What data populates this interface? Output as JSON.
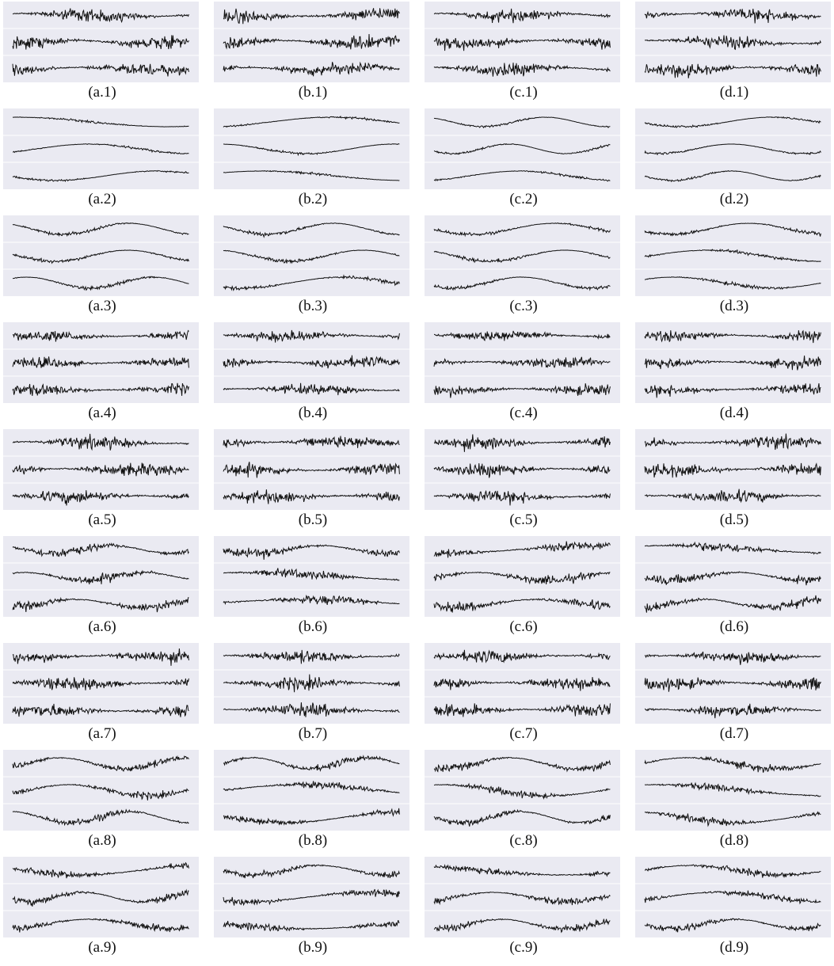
{
  "panels": [
    {
      "caption": "(a.1)"
    },
    {
      "caption": "(b.1)"
    },
    {
      "caption": "(c.1)"
    },
    {
      "caption": "(d.1)"
    },
    {
      "caption": "(a.2)"
    },
    {
      "caption": "(b.2)"
    },
    {
      "caption": "(c.2)"
    },
    {
      "caption": "(d.2)"
    },
    {
      "caption": "(a.3)"
    },
    {
      "caption": "(b.3)"
    },
    {
      "caption": "(c.3)"
    },
    {
      "caption": "(d.3)"
    },
    {
      "caption": "(a.4)"
    },
    {
      "caption": "(b.4)"
    },
    {
      "caption": "(c.4)"
    },
    {
      "caption": "(d.4)"
    },
    {
      "caption": "(a.5)"
    },
    {
      "caption": "(b.5)"
    },
    {
      "caption": "(c.5)"
    },
    {
      "caption": "(d.5)"
    },
    {
      "caption": "(a.6)"
    },
    {
      "caption": "(b.6)"
    },
    {
      "caption": "(c.6)"
    },
    {
      "caption": "(d.6)"
    },
    {
      "caption": "(a.7)"
    },
    {
      "caption": "(b.7)"
    },
    {
      "caption": "(c.7)"
    },
    {
      "caption": "(d.7)"
    },
    {
      "caption": "(a.8)"
    },
    {
      "caption": "(b.8)"
    },
    {
      "caption": "(c.8)"
    },
    {
      "caption": "(d.8)"
    },
    {
      "caption": "(a.9)"
    },
    {
      "caption": "(b.9)"
    },
    {
      "caption": "(c.9)"
    },
    {
      "caption": "(d.9)"
    }
  ]
}
